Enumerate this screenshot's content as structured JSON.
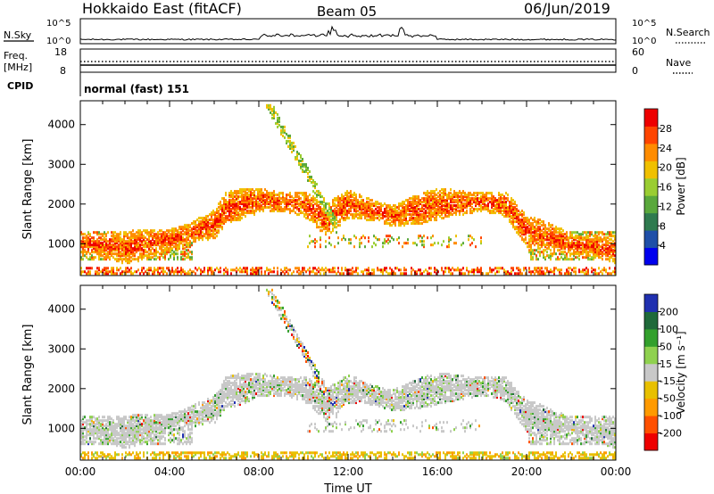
{
  "header": {
    "station": "Hokkaido East (fitACF)",
    "beam": "Beam 05",
    "date": "06/Jun/2019"
  },
  "status_panels": {
    "nsky": {
      "label": "N.Sky",
      "ticks": [
        "10^5",
        "10^0"
      ]
    },
    "nsearch": {
      "label": "N.Search",
      "ticks": [
        "10^5",
        "10^0"
      ]
    },
    "freq": {
      "label_line1": "Freq.",
      "label_line2": "[MHz]",
      "ticks": [
        "18",
        "8"
      ]
    },
    "nave": {
      "label": "Nave",
      "ticks": [
        "60",
        "0"
      ]
    },
    "cpid": {
      "label": "CPID",
      "value": "normal (fast) 151"
    }
  },
  "colors": {
    "power_scale": [
      "#0000ee",
      "#1f4fa8",
      "#2f7a4f",
      "#5aa83c",
      "#9acd32",
      "#f0c000",
      "#ff8c00",
      "#ff4500",
      "#ee0000"
    ],
    "velocity_scale": [
      "#2030b0",
      "#1f6a3a",
      "#33a02c",
      "#8fd14f",
      "#c8c8c8",
      "#e8c000",
      "#ff9a00",
      "#ff5000",
      "#ee0000"
    ]
  },
  "chart_data": [
    {
      "type": "heatmap",
      "name": "power",
      "xlabel": "",
      "ylabel": "Slant Range [km]",
      "ylim": [
        200,
        4600
      ],
      "yticks": [
        "4000",
        "3000",
        "2000",
        "1000"
      ],
      "colorbar": {
        "label": "Power [dB]",
        "ticks": [
          "28",
          "24",
          "20",
          "16",
          "12",
          "8",
          "4"
        ],
        "range": [
          0,
          32
        ]
      },
      "main_echo_band": {
        "time_hours": [
          0,
          2,
          4,
          6,
          6.5,
          8,
          10,
          11,
          12,
          14,
          16,
          18,
          19,
          20,
          22,
          24
        ],
        "range_km": [
          1000,
          900,
          1100,
          1500,
          1900,
          2100,
          2000,
          1600,
          2000,
          1700,
          2000,
          2050,
          2000,
          1300,
          1000,
          850
        ]
      }
    },
    {
      "type": "heatmap",
      "name": "velocity",
      "xlabel": "Time UT",
      "ylabel": "Slant Range [km]",
      "ylim": [
        200,
        4600
      ],
      "yticks": [
        "4000",
        "3000",
        "2000",
        "1000"
      ],
      "xticks": [
        "00:00",
        "04:00",
        "08:00",
        "12:00",
        "16:00",
        "20:00",
        "00:00"
      ],
      "colorbar": {
        "label": "Velocity [m s⁻¹]",
        "ticks": [
          "200",
          "100",
          "50",
          "15",
          "-15",
          "-50",
          "-100",
          "-200"
        ],
        "range": [
          -250,
          250
        ]
      }
    }
  ]
}
